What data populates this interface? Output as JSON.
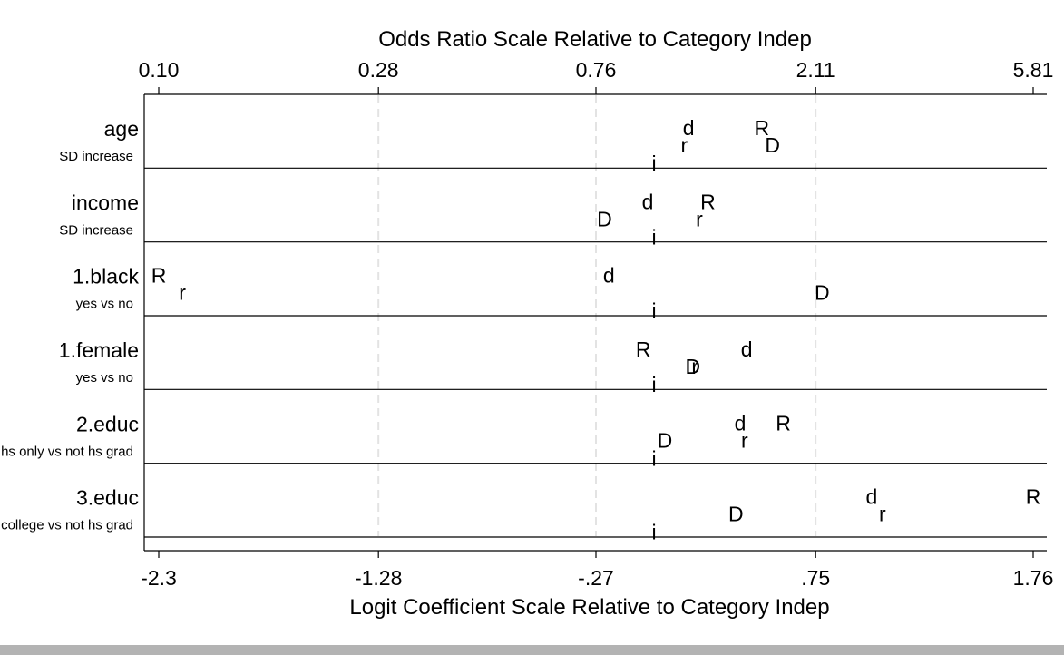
{
  "chart_data": {
    "type": "scatter",
    "title_top": "Odds Ratio Scale Relative to Category Indep",
    "xlabel_bottom": "Logit Coefficient Scale Relative to Category Indep",
    "top_tick_labels": [
      "0.10",
      "0.28",
      "0.76",
      "2.11",
      "5.81"
    ],
    "bottom_tick_labels": [
      "-2.3",
      "-1.28",
      "-.27",
      ".75",
      "1.76"
    ],
    "xlim": [
      -2.36,
      1.76
    ],
    "grid": "vertical dashed",
    "variables": [
      {
        "name": "age",
        "sub": "SD increase",
        "points": [
          {
            "label": "d",
            "x": 0.16,
            "lane": 0
          },
          {
            "label": "R",
            "x": 0.5,
            "lane": 0
          },
          {
            "label": "r",
            "x": 0.14,
            "lane": 1
          },
          {
            "label": "D",
            "x": 0.55,
            "lane": 1
          },
          {
            "label": "i",
            "x": 0.0,
            "lane": 2
          }
        ]
      },
      {
        "name": "income",
        "sub": "SD increase",
        "points": [
          {
            "label": "d",
            "x": -0.03,
            "lane": 0
          },
          {
            "label": "R",
            "x": 0.25,
            "lane": 0
          },
          {
            "label": "D",
            "x": -0.23,
            "lane": 1
          },
          {
            "label": "r",
            "x": 0.21,
            "lane": 1
          },
          {
            "label": "i",
            "x": 0.0,
            "lane": 2
          }
        ]
      },
      {
        "name": "1.black",
        "sub": "yes vs no",
        "points": [
          {
            "label": "R",
            "x": -2.3,
            "lane": 0
          },
          {
            "label": "d",
            "x": -0.21,
            "lane": 0
          },
          {
            "label": "r",
            "x": -2.19,
            "lane": 1
          },
          {
            "label": "D",
            "x": 0.78,
            "lane": 1
          },
          {
            "label": "i",
            "x": 0.0,
            "lane": 2
          }
        ]
      },
      {
        "name": "1.female",
        "sub": "yes vs no",
        "points": [
          {
            "label": "R",
            "x": -0.05,
            "lane": 0
          },
          {
            "label": "d",
            "x": 0.43,
            "lane": 0
          },
          {
            "label": "D",
            "x": 0.18,
            "lane": 1
          },
          {
            "label": "r",
            "x": 0.19,
            "lane": 1
          },
          {
            "label": "i",
            "x": 0.0,
            "lane": 2
          }
        ]
      },
      {
        "name": "2.educ",
        "sub": "hs only vs not hs grad",
        "points": [
          {
            "label": "d",
            "x": 0.4,
            "lane": 0
          },
          {
            "label": "R",
            "x": 0.6,
            "lane": 0
          },
          {
            "label": "D",
            "x": 0.05,
            "lane": 1
          },
          {
            "label": "r",
            "x": 0.42,
            "lane": 1
          },
          {
            "label": "i",
            "x": 0.0,
            "lane": 2
          }
        ]
      },
      {
        "name": "3.educ",
        "sub": "college vs not hs grad",
        "points": [
          {
            "label": "d",
            "x": 1.01,
            "lane": 0
          },
          {
            "label": "R",
            "x": 1.76,
            "lane": 0
          },
          {
            "label": "D",
            "x": 0.38,
            "lane": 1
          },
          {
            "label": "r",
            "x": 1.06,
            "lane": 1
          },
          {
            "label": "i",
            "x": 0.0,
            "lane": 2
          }
        ]
      }
    ]
  }
}
